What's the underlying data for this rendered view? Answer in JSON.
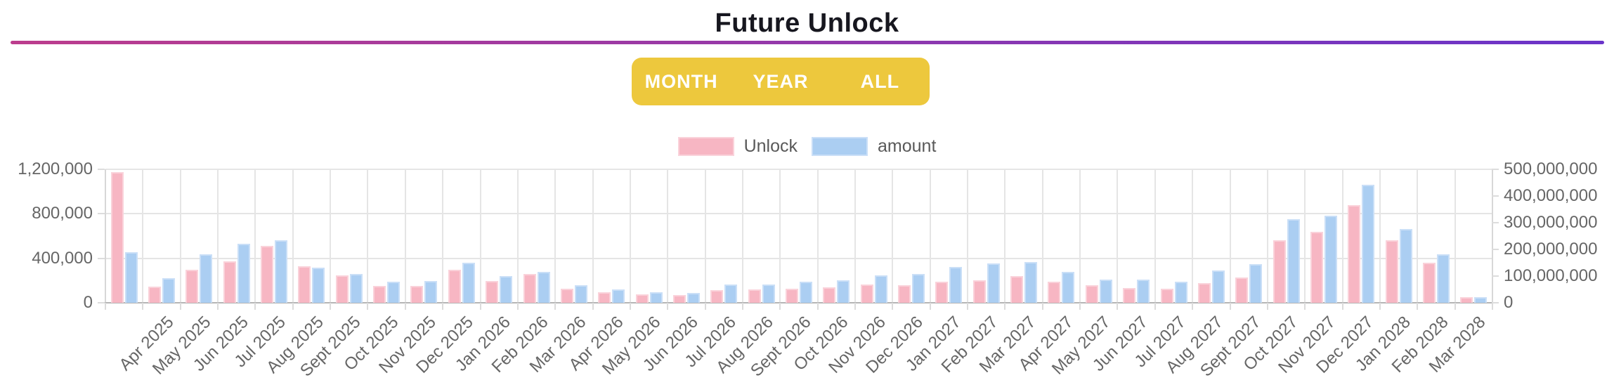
{
  "header": {
    "title": "Future Unlock"
  },
  "range_tabs": {
    "background_color": "#edc83d",
    "text_color": "#ffffff",
    "items": [
      {
        "label": "MONTH"
      },
      {
        "label": "YEAR"
      },
      {
        "label": "ALL"
      }
    ]
  },
  "legend": {
    "items": [
      {
        "label": "Unlock",
        "color": "#f7b6c3",
        "border_color": "#fad2da"
      },
      {
        "label": "amount",
        "color": "#abcef2",
        "border_color": "#cadff7"
      }
    ]
  },
  "chart_data": {
    "type": "bar",
    "title": "Future Unlock",
    "legend_position": "top",
    "grid": "vertical lines at category boundaries, horizontal lines at left-axis ticks",
    "categories": [
      "",
      "Apr 2025",
      "May 2025",
      "Jun 2025",
      "Jul 2025",
      "Aug 2025",
      "Sept 2025",
      "Oct 2025",
      "Nov 2025",
      "Dec 2025",
      "Jan 2026",
      "Feb 2026",
      "Mar 2026",
      "Apr 2026",
      "May 2026",
      "Jun 2026",
      "Jul 2026",
      "Aug 2026",
      "Sept 2026",
      "Oct 2026",
      "Nov 2026",
      "Dec 2026",
      "Jan 2027",
      "Feb 2027",
      "Mar 2027",
      "Apr 2027",
      "May 2027",
      "Jun 2027",
      "Jul 2027",
      "Aug 2027",
      "Sept 2027",
      "Oct 2027",
      "Nov 2027",
      "Dec 2027",
      "Jan 2028",
      "Feb 2028",
      "Mar 2028"
    ],
    "series": [
      {
        "name": "Unlock",
        "axis": "left",
        "color": "#f7b6c3",
        "border_color": "#fad2da",
        "values": [
          1175000,
          145000,
          295000,
          375000,
          510000,
          330000,
          245000,
          150000,
          150000,
          300000,
          195000,
          260000,
          125000,
          97000,
          78000,
          69000,
          115000,
          120000,
          125000,
          137000,
          165000,
          158000,
          190000,
          205000,
          240000,
          190000,
          155000,
          130000,
          125000,
          175000,
          227000,
          565000,
          640000,
          878000,
          560000,
          360000,
          52000
        ]
      },
      {
        "name": "amount",
        "axis": "right",
        "color": "#abcef2",
        "border_color": "#cadff7",
        "values": [
          190000000,
          92000000,
          182000000,
          220000000,
          233000000,
          132000000,
          108000000,
          79000000,
          82000000,
          150000000,
          99000000,
          115000000,
          65000000,
          50000000,
          39000000,
          37000000,
          68000000,
          69000000,
          79000000,
          84000000,
          103000000,
          107000000,
          134000000,
          148000000,
          152000000,
          115000000,
          87000000,
          88000000,
          79000000,
          121000000,
          146000000,
          312000000,
          326000000,
          441000000,
          277000000,
          181000000,
          20000000
        ]
      }
    ],
    "left_axis": {
      "min": 0,
      "max": 1200000,
      "ticks": [
        0,
        400000,
        800000,
        1200000
      ],
      "tick_labels": [
        "0",
        "400,000",
        "800,000",
        "1,200,000"
      ]
    },
    "right_axis": {
      "min": 0,
      "max": 500000000,
      "ticks": [
        0,
        100000000,
        200000000,
        300000000,
        400000000,
        500000000
      ],
      "tick_labels": [
        "0",
        "100,000,000",
        "200,000,000",
        "300,000,000",
        "400,000,000",
        "500,000,000"
      ]
    }
  }
}
